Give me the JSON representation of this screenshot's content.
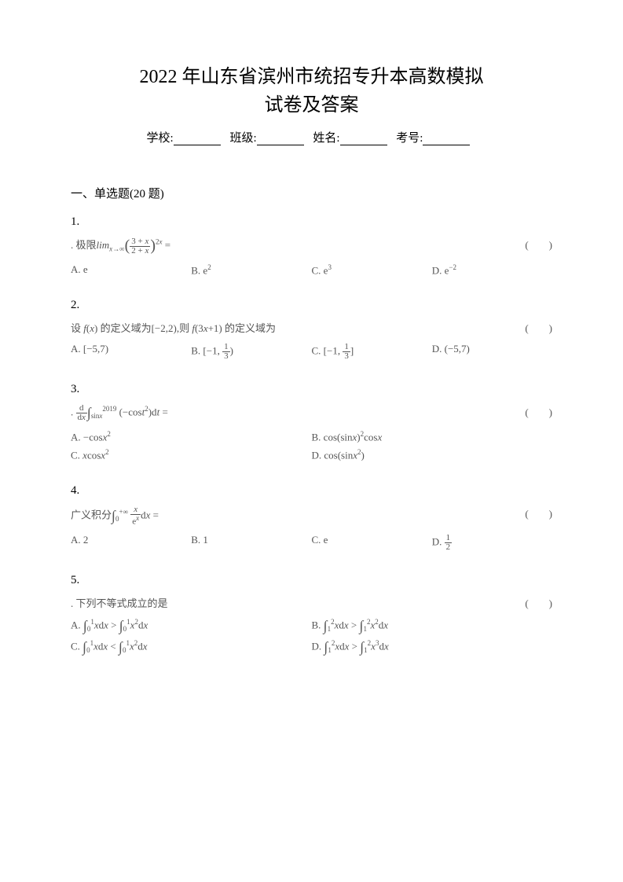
{
  "title_line1": "2022 年山东省滨州市统招专升本高数模拟",
  "title_line2": "试卷及答案",
  "info": {
    "school_label": "学校:",
    "class_label": "班级:",
    "name_label": "姓名:",
    "exam_no_label": "考号:"
  },
  "section": "一、单选题(20 题)",
  "questions": {
    "q1": {
      "num": "1.",
      "stem_prefix": ". 极限",
      "stem_math": "lim(x→∞) ((3+x)/(2+x))^2x =",
      "opt_a": "A. e",
      "opt_b": "B. e²",
      "opt_c": "C. e³",
      "opt_d": "D. e⁻²"
    },
    "q2": {
      "num": "2.",
      "stem": "设 f(x) 的定义域为[−2,2),则 f(3x+1) 的定义域为",
      "opt_a": "A. [−5,7)",
      "opt_b": "B. [−1, 1/3)",
      "opt_c": "C. [−1, 1/3]",
      "opt_d": "D. (−5,7)"
    },
    "q3": {
      "num": "3.",
      "stem_prefix": ".",
      "stem_math": "d/dx ∫(sinx→2019) (−cost²)dt =",
      "opt_a": "A. −cosx²",
      "opt_b": "B. cos(sinx)²cosx",
      "opt_c": "C. xcosx²",
      "opt_d": "D. cos(sinx²)"
    },
    "q4": {
      "num": "4.",
      "stem_prefix": "广义积分",
      "stem_math": "∫(0→+∞) x/eˣ dx =",
      "opt_a": "A. 2",
      "opt_b": "B. 1",
      "opt_c": "C. e",
      "opt_d": "D. 1/2"
    },
    "q5": {
      "num": "5.",
      "stem": ". 下列不等式成立的是",
      "opt_a": "A. ∫₀¹ xdx > ∫₀¹ x²dx",
      "opt_b": "B. ∫₁² xdx > ∫₁² x²dx",
      "opt_c": "C. ∫₀¹ xdx < ∫₀¹ x²dx",
      "opt_d": "D. ∫₁² xdx > ∫₁² x³dx"
    }
  },
  "colors": {
    "text_primary": "#000000",
    "text_secondary": "#555555",
    "background": "#ffffff"
  },
  "fonts": {
    "title_size": 24,
    "body_size": 15,
    "question_size": 13
  }
}
